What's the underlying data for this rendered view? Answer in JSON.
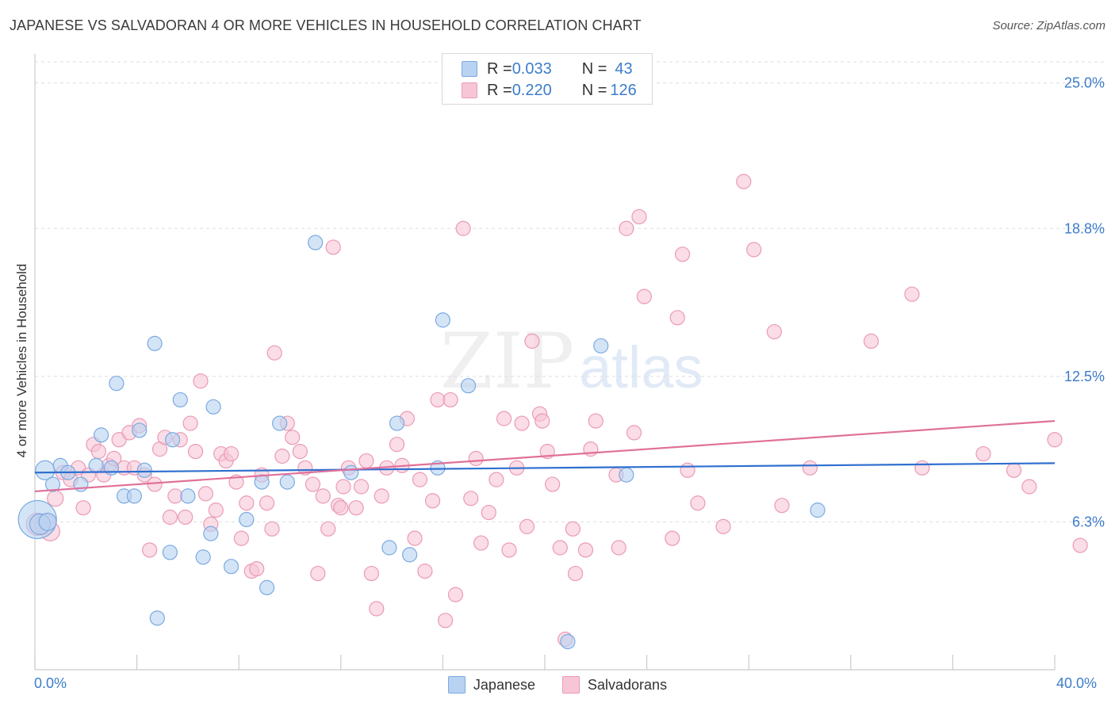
{
  "title": "JAPANESE VS SALVADORAN 4 OR MORE VEHICLES IN HOUSEHOLD CORRELATION CHART",
  "source": "Source: ZipAtlas.com",
  "watermark": {
    "zip": "ZIP",
    "atlas": "atlas"
  },
  "legend_top": {
    "japanese": {
      "r_label": "R = ",
      "r_value": "0.033",
      "n_label": "N = ",
      "n_value": "43"
    },
    "salvadoran": {
      "r_label": "R = ",
      "r_value": "0.220",
      "n_label": "N = ",
      "n_value": "126"
    }
  },
  "legend_bottom": {
    "japanese": "Japanese",
    "salvadoran": "Salvadorans"
  },
  "colors": {
    "japanese_fill": "#b8d2f2",
    "japanese_stroke": "#7aaae0",
    "japanese_line": "#2f6fcf",
    "salvadoran_fill": "#f7c6d6",
    "salvadoran_stroke": "#eb9ab6",
    "salvadoran_line": "#e0709a",
    "axis_text": "#3d7cc9",
    "grid": "#dddddd"
  },
  "chart_data": {
    "type": "scatter",
    "title": "JAPANESE VS SALVADORAN 4 OR MORE VEHICLES IN HOUSEHOLD CORRELATION CHART",
    "xlabel": "",
    "ylabel": "4 or more Vehicles in Household",
    "xlim": [
      0,
      40
    ],
    "ylim": [
      0,
      25.9
    ],
    "x_tick_labels": [
      "0.0%",
      "40.0%"
    ],
    "y_ticks": [
      6.3,
      12.5,
      18.8,
      25.0
    ],
    "y_tick_labels": [
      "6.3%",
      "12.5%",
      "18.8%",
      "25.0%"
    ],
    "grid": "horizontal dashed",
    "legend_placement": "top-center",
    "series": [
      {
        "name": "Japanese",
        "trend": [
          [
            0,
            8.4
          ],
          [
            40,
            8.8
          ]
        ],
        "points": [
          [
            0.1,
            6.4,
            24
          ],
          [
            0.4,
            8.5,
            12
          ],
          [
            0.7,
            7.9,
            9
          ],
          [
            1.0,
            8.7,
            9
          ],
          [
            1.3,
            8.4,
            9
          ],
          [
            1.8,
            7.9,
            9
          ],
          [
            2.4,
            8.7,
            9
          ],
          [
            2.6,
            10.0,
            9
          ],
          [
            3.0,
            8.6,
            9
          ],
          [
            3.2,
            12.2,
            9
          ],
          [
            3.5,
            7.4,
            9
          ],
          [
            3.9,
            7.4,
            9
          ],
          [
            4.1,
            10.2,
            9
          ],
          [
            4.3,
            8.5,
            9
          ],
          [
            4.7,
            13.9,
            9
          ],
          [
            4.8,
            2.2,
            9
          ],
          [
            5.3,
            5.0,
            9
          ],
          [
            5.4,
            9.8,
            9
          ],
          [
            5.7,
            11.5,
            9
          ],
          [
            6.0,
            7.4,
            9
          ],
          [
            6.6,
            4.8,
            9
          ],
          [
            6.9,
            5.8,
            9
          ],
          [
            7.0,
            11.2,
            9
          ],
          [
            7.7,
            4.4,
            9
          ],
          [
            8.3,
            6.4,
            9
          ],
          [
            8.9,
            8.0,
            9
          ],
          [
            9.1,
            3.5,
            9
          ],
          [
            9.6,
            10.5,
            9
          ],
          [
            9.9,
            8.0,
            9
          ],
          [
            11.0,
            18.2,
            9
          ],
          [
            12.4,
            8.4,
            9
          ],
          [
            13.9,
            5.2,
            9
          ],
          [
            14.2,
            10.5,
            9
          ],
          [
            14.7,
            4.9,
            9
          ],
          [
            15.8,
            8.6,
            9
          ],
          [
            16.0,
            14.9,
            9
          ],
          [
            17.0,
            12.1,
            9
          ],
          [
            20.9,
            1.2,
            9
          ],
          [
            22.2,
            13.8,
            9
          ],
          [
            23.2,
            8.3,
            9
          ],
          [
            30.7,
            6.8,
            9
          ],
          [
            0.2,
            6.2,
            13
          ],
          [
            0.5,
            6.3,
            11
          ]
        ]
      },
      {
        "name": "Salvadorans",
        "trend": [
          [
            0,
            7.6
          ],
          [
            40,
            10.6
          ]
        ],
        "points": [
          [
            0.1,
            6.2,
            14
          ],
          [
            0.4,
            6.2,
            13
          ],
          [
            0.6,
            5.9,
            12
          ],
          [
            0.8,
            7.3,
            10
          ],
          [
            1.1,
            8.4,
            9
          ],
          [
            1.4,
            8.1,
            9
          ],
          [
            1.7,
            8.6,
            9
          ],
          [
            1.9,
            6.9,
            9
          ],
          [
            2.1,
            8.3,
            9
          ],
          [
            2.3,
            9.6,
            9
          ],
          [
            2.5,
            9.3,
            9
          ],
          [
            2.7,
            8.3,
            9
          ],
          [
            2.9,
            8.7,
            9
          ],
          [
            3.1,
            9.0,
            9
          ],
          [
            3.3,
            9.8,
            9
          ],
          [
            3.5,
            8.6,
            9
          ],
          [
            3.7,
            10.1,
            9
          ],
          [
            3.9,
            8.6,
            9
          ],
          [
            4.1,
            10.4,
            9
          ],
          [
            4.3,
            8.3,
            9
          ],
          [
            4.5,
            5.1,
            9
          ],
          [
            4.7,
            7.9,
            9
          ],
          [
            4.9,
            9.4,
            9
          ],
          [
            5.1,
            9.9,
            9
          ],
          [
            5.3,
            6.5,
            9
          ],
          [
            5.5,
            7.4,
            9
          ],
          [
            5.7,
            9.8,
            9
          ],
          [
            5.9,
            6.5,
            9
          ],
          [
            6.1,
            10.5,
            9
          ],
          [
            6.3,
            9.3,
            9
          ],
          [
            6.5,
            12.3,
            9
          ],
          [
            6.7,
            7.5,
            9
          ],
          [
            6.9,
            6.2,
            9
          ],
          [
            7.1,
            6.8,
            9
          ],
          [
            7.3,
            9.2,
            9
          ],
          [
            7.5,
            8.9,
            9
          ],
          [
            7.7,
            9.2,
            9
          ],
          [
            7.9,
            8.0,
            9
          ],
          [
            8.1,
            5.6,
            9
          ],
          [
            8.3,
            7.1,
            9
          ],
          [
            8.5,
            4.2,
            9
          ],
          [
            8.7,
            4.3,
            9
          ],
          [
            8.9,
            8.3,
            9
          ],
          [
            9.1,
            7.1,
            9
          ],
          [
            9.3,
            6.0,
            9
          ],
          [
            9.4,
            13.5,
            9
          ],
          [
            9.7,
            9.1,
            9
          ],
          [
            9.9,
            10.5,
            9
          ],
          [
            10.1,
            9.9,
            9
          ],
          [
            10.4,
            9.3,
            9
          ],
          [
            10.6,
            8.6,
            9
          ],
          [
            10.9,
            7.9,
            9
          ],
          [
            11.1,
            4.1,
            9
          ],
          [
            11.3,
            7.4,
            9
          ],
          [
            11.5,
            6.0,
            9
          ],
          [
            11.7,
            18.0,
            9
          ],
          [
            11.9,
            7.0,
            9
          ],
          [
            12.1,
            7.8,
            9
          ],
          [
            12.3,
            8.6,
            9
          ],
          [
            12.6,
            6.9,
            9
          ],
          [
            12.8,
            7.8,
            9
          ],
          [
            13.0,
            8.9,
            9
          ],
          [
            13.2,
            4.1,
            9
          ],
          [
            13.4,
            2.6,
            9
          ],
          [
            13.6,
            7.4,
            9
          ],
          [
            13.8,
            8.6,
            9
          ],
          [
            14.2,
            9.6,
            9
          ],
          [
            14.4,
            8.7,
            9
          ],
          [
            14.6,
            10.7,
            9
          ],
          [
            14.9,
            5.6,
            9
          ],
          [
            15.1,
            8.1,
            9
          ],
          [
            15.3,
            4.2,
            9
          ],
          [
            15.6,
            7.2,
            9
          ],
          [
            15.8,
            11.5,
            9
          ],
          [
            16.1,
            2.1,
            9
          ],
          [
            16.3,
            11.5,
            9
          ],
          [
            16.5,
            3.2,
            9
          ],
          [
            16.8,
            18.8,
            9
          ],
          [
            17.1,
            7.3,
            9
          ],
          [
            17.3,
            9.0,
            9
          ],
          [
            17.5,
            5.4,
            9
          ],
          [
            17.8,
            6.7,
            9
          ],
          [
            18.1,
            8.1,
            9
          ],
          [
            18.4,
            10.7,
            9
          ],
          [
            18.6,
            5.1,
            9
          ],
          [
            18.9,
            8.6,
            9
          ],
          [
            19.1,
            10.5,
            9
          ],
          [
            19.3,
            6.1,
            9
          ],
          [
            19.5,
            14.0,
            9
          ],
          [
            19.8,
            10.9,
            9
          ],
          [
            19.9,
            10.6,
            9
          ],
          [
            20.1,
            9.3,
            9
          ],
          [
            20.3,
            7.9,
            9
          ],
          [
            20.6,
            5.2,
            9
          ],
          [
            20.8,
            1.3,
            9
          ],
          [
            21.1,
            6.0,
            9
          ],
          [
            21.6,
            5.1,
            9
          ],
          [
            21.8,
            9.4,
            9
          ],
          [
            22.0,
            10.6,
            9
          ],
          [
            22.8,
            8.3,
            9
          ],
          [
            22.9,
            5.2,
            9
          ],
          [
            23.2,
            18.8,
            9
          ],
          [
            23.7,
            19.3,
            9
          ],
          [
            23.5,
            10.1,
            9
          ],
          [
            23.9,
            15.9,
            9
          ],
          [
            25.0,
            5.6,
            9
          ],
          [
            25.2,
            15.0,
            9
          ],
          [
            25.4,
            17.7,
            9
          ],
          [
            25.6,
            8.5,
            9
          ],
          [
            26.0,
            7.1,
            9
          ],
          [
            27.0,
            6.1,
            9
          ],
          [
            27.8,
            20.8,
            9
          ],
          [
            28.2,
            17.9,
            9
          ],
          [
            29.0,
            14.4,
            9
          ],
          [
            29.3,
            7.0,
            9
          ],
          [
            30.4,
            8.6,
            9
          ],
          [
            32.8,
            14.0,
            9
          ],
          [
            34.4,
            16.0,
            9
          ],
          [
            34.8,
            8.6,
            9
          ],
          [
            37.2,
            9.2,
            9
          ],
          [
            38.4,
            8.5,
            9
          ],
          [
            39.0,
            7.8,
            9
          ],
          [
            40.0,
            9.8,
            9
          ],
          [
            41.0,
            5.3,
            9
          ],
          [
            21.2,
            4.1,
            9
          ],
          [
            12.0,
            6.9,
            9
          ]
        ]
      }
    ]
  }
}
